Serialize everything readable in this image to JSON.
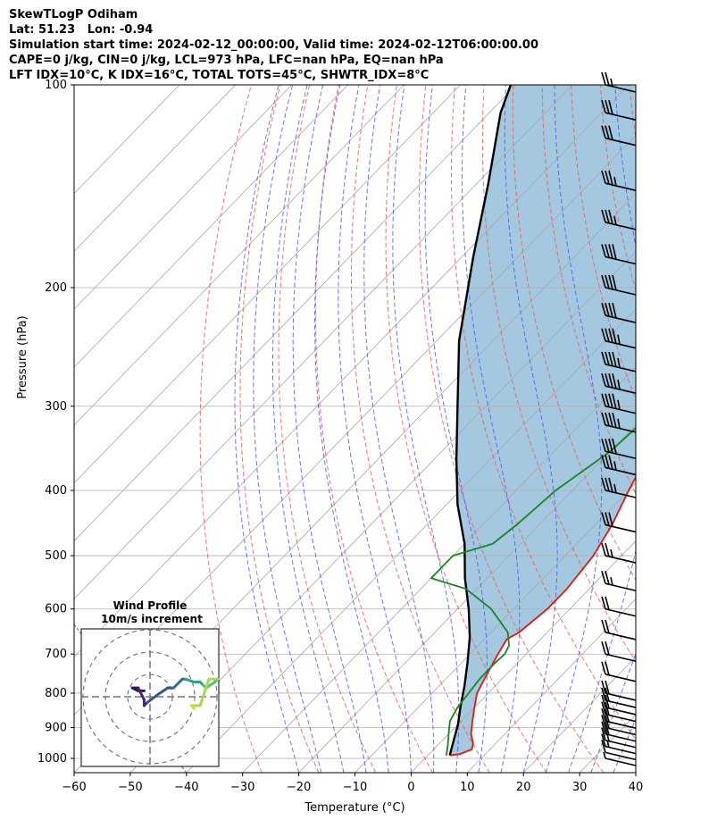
{
  "header": {
    "line1": "SkewTLogP Odiham",
    "line2": "Lat: 51.23   Lon: -0.94",
    "line3": "Simulation start time: 2024-02-12_00:00:00, Valid time: 2024-02-12T06:00:00.00",
    "line4": "CAPE=0 j/kg, CIN=0 j/kg, LCL=973 hPa, LFC=nan hPa, EQ=nan hPa",
    "line5": "LFT IDX=10°C, K IDX=16°C, TOTAL TOTS=45°C, SHWTR_IDX=8°C"
  },
  "chart_data": [
    {
      "type": "skew-t log-p",
      "xlabel": "Temperature (°C)",
      "ylabel": "Pressure (hPa)",
      "xlim": [
        -60,
        40
      ],
      "ylim": [
        1050,
        100
      ],
      "y_scale": "log",
      "x_ticks": [
        "−60",
        "−50",
        "−40",
        "−30",
        "−20",
        "−10",
        "0",
        "10",
        "20",
        "30",
        "40"
      ],
      "y_ticks": [
        "100",
        "200",
        "300",
        "400",
        "500",
        "600",
        "700",
        "800",
        "900",
        "1000"
      ],
      "grid": true,
      "temperature": {
        "color": "#e8120c",
        "points": [
          [
            3.9,
            990
          ],
          [
            5.5,
            985
          ],
          [
            6.8,
            970
          ],
          [
            6,
            950
          ],
          [
            4,
            920
          ],
          [
            2,
            880
          ],
          [
            0,
            840
          ],
          [
            -2,
            800
          ],
          [
            -3.5,
            750
          ],
          [
            -5,
            700
          ],
          [
            -6,
            665
          ],
          [
            -5,
            650
          ],
          [
            -4,
            600
          ],
          [
            -4,
            560
          ],
          [
            -5,
            500
          ],
          [
            -7,
            450
          ],
          [
            -10,
            400
          ],
          [
            -13,
            350
          ],
          [
            -14,
            320
          ],
          [
            -14,
            300
          ],
          [
            -12,
            275
          ],
          [
            -8,
            250
          ],
          [
            -3,
            230
          ],
          [
            2,
            200
          ],
          [
            6,
            180
          ],
          [
            10,
            160
          ],
          [
            15,
            140
          ],
          [
            20,
            120
          ],
          [
            22,
            110
          ],
          [
            24,
            100
          ]
        ]
      },
      "dewpoint": {
        "color": "#17861c",
        "points": [
          [
            3.3,
            990
          ],
          [
            2,
            960
          ],
          [
            0,
            920
          ],
          [
            -2,
            880
          ],
          [
            -3,
            840
          ],
          [
            -3.5,
            800
          ],
          [
            -4,
            760
          ],
          [
            -4,
            720
          ],
          [
            -3.8,
            700
          ],
          [
            -4.5,
            680
          ],
          [
            -7,
            650
          ],
          [
            -14,
            600
          ],
          [
            -22,
            560
          ],
          [
            -30,
            540
          ],
          [
            -30,
            500
          ],
          [
            -25,
            480
          ],
          [
            -24,
            450
          ],
          [
            -23,
            400
          ],
          [
            -20,
            350
          ],
          [
            -19,
            300
          ],
          [
            -18,
            270
          ],
          [
            -20,
            255
          ],
          [
            -23,
            240
          ],
          [
            -25,
            225
          ],
          [
            -25,
            210
          ],
          [
            -24,
            200
          ],
          [
            -22,
            185
          ],
          [
            -18,
            165
          ],
          [
            -14,
            145
          ],
          [
            -10,
            125
          ],
          [
            -6,
            110
          ],
          [
            -2,
            100
          ]
        ]
      },
      "parcel": {
        "color": "#000000",
        "points": [
          [
            3.9,
            990
          ],
          [
            2,
            940
          ],
          [
            0,
            890
          ],
          [
            -2.5,
            840
          ],
          [
            -5.5,
            780
          ],
          [
            -9,
            720
          ],
          [
            -13,
            660
          ],
          [
            -18,
            600
          ],
          [
            -24,
            540
          ],
          [
            -30,
            480
          ],
          [
            -38,
            420
          ],
          [
            -46,
            360
          ],
          [
            -55,
            300
          ],
          [
            -66,
            240
          ],
          [
            -78,
            180
          ],
          [
            -88,
            140
          ],
          [
            -98,
            110
          ],
          [
            -101,
            100
          ]
        ]
      },
      "cape_cin_fill": "#a3c8e0",
      "dry_adiabat_color": "#f05b5b",
      "moist_adiabat_color": "#4f5cf0",
      "mixing_ratio_color": "#9940c0",
      "isotherm_color": "#a8a8a8",
      "wind_barbs": {
        "pressures": [
          1000,
          980,
          960,
          940,
          920,
          900,
          880,
          860,
          840,
          820,
          800,
          750,
          700,
          650,
          600,
          550,
          500,
          450,
          400,
          370,
          350,
          320,
          300,
          280,
          260,
          240,
          220,
          200,
          180,
          160,
          140,
          120,
          110,
          100
        ],
        "speeds_kt": [
          5,
          10,
          15,
          20,
          20,
          20,
          20,
          20,
          20,
          20,
          20,
          20,
          20,
          20,
          20,
          25,
          25,
          30,
          35,
          35,
          40,
          45,
          45,
          45,
          45,
          45,
          40,
          40,
          40,
          35,
          35,
          30,
          30,
          25
        ]
      },
      "hodograph": {
        "title": "Wind Profile",
        "subtitle": "10m/s increment",
        "points": [
          [
            -2,
            2
          ],
          [
            -4,
            2
          ],
          [
            -6,
            3
          ],
          [
            -4,
            3
          ],
          [
            -2,
            -1
          ],
          [
            -2,
            -3
          ],
          [
            -1,
            -2
          ],
          [
            3,
            1
          ],
          [
            6,
            3
          ],
          [
            8,
            3
          ],
          [
            10,
            5
          ],
          [
            11,
            6
          ],
          [
            12,
            6
          ],
          [
            15,
            5
          ],
          [
            17,
            5
          ],
          [
            18,
            4
          ],
          [
            19,
            3
          ],
          [
            22,
            5
          ],
          [
            23,
            6
          ],
          [
            20,
            6
          ],
          [
            17,
            -3
          ],
          [
            14,
            -3
          ],
          [
            15,
            -4
          ]
        ]
      }
    }
  ]
}
